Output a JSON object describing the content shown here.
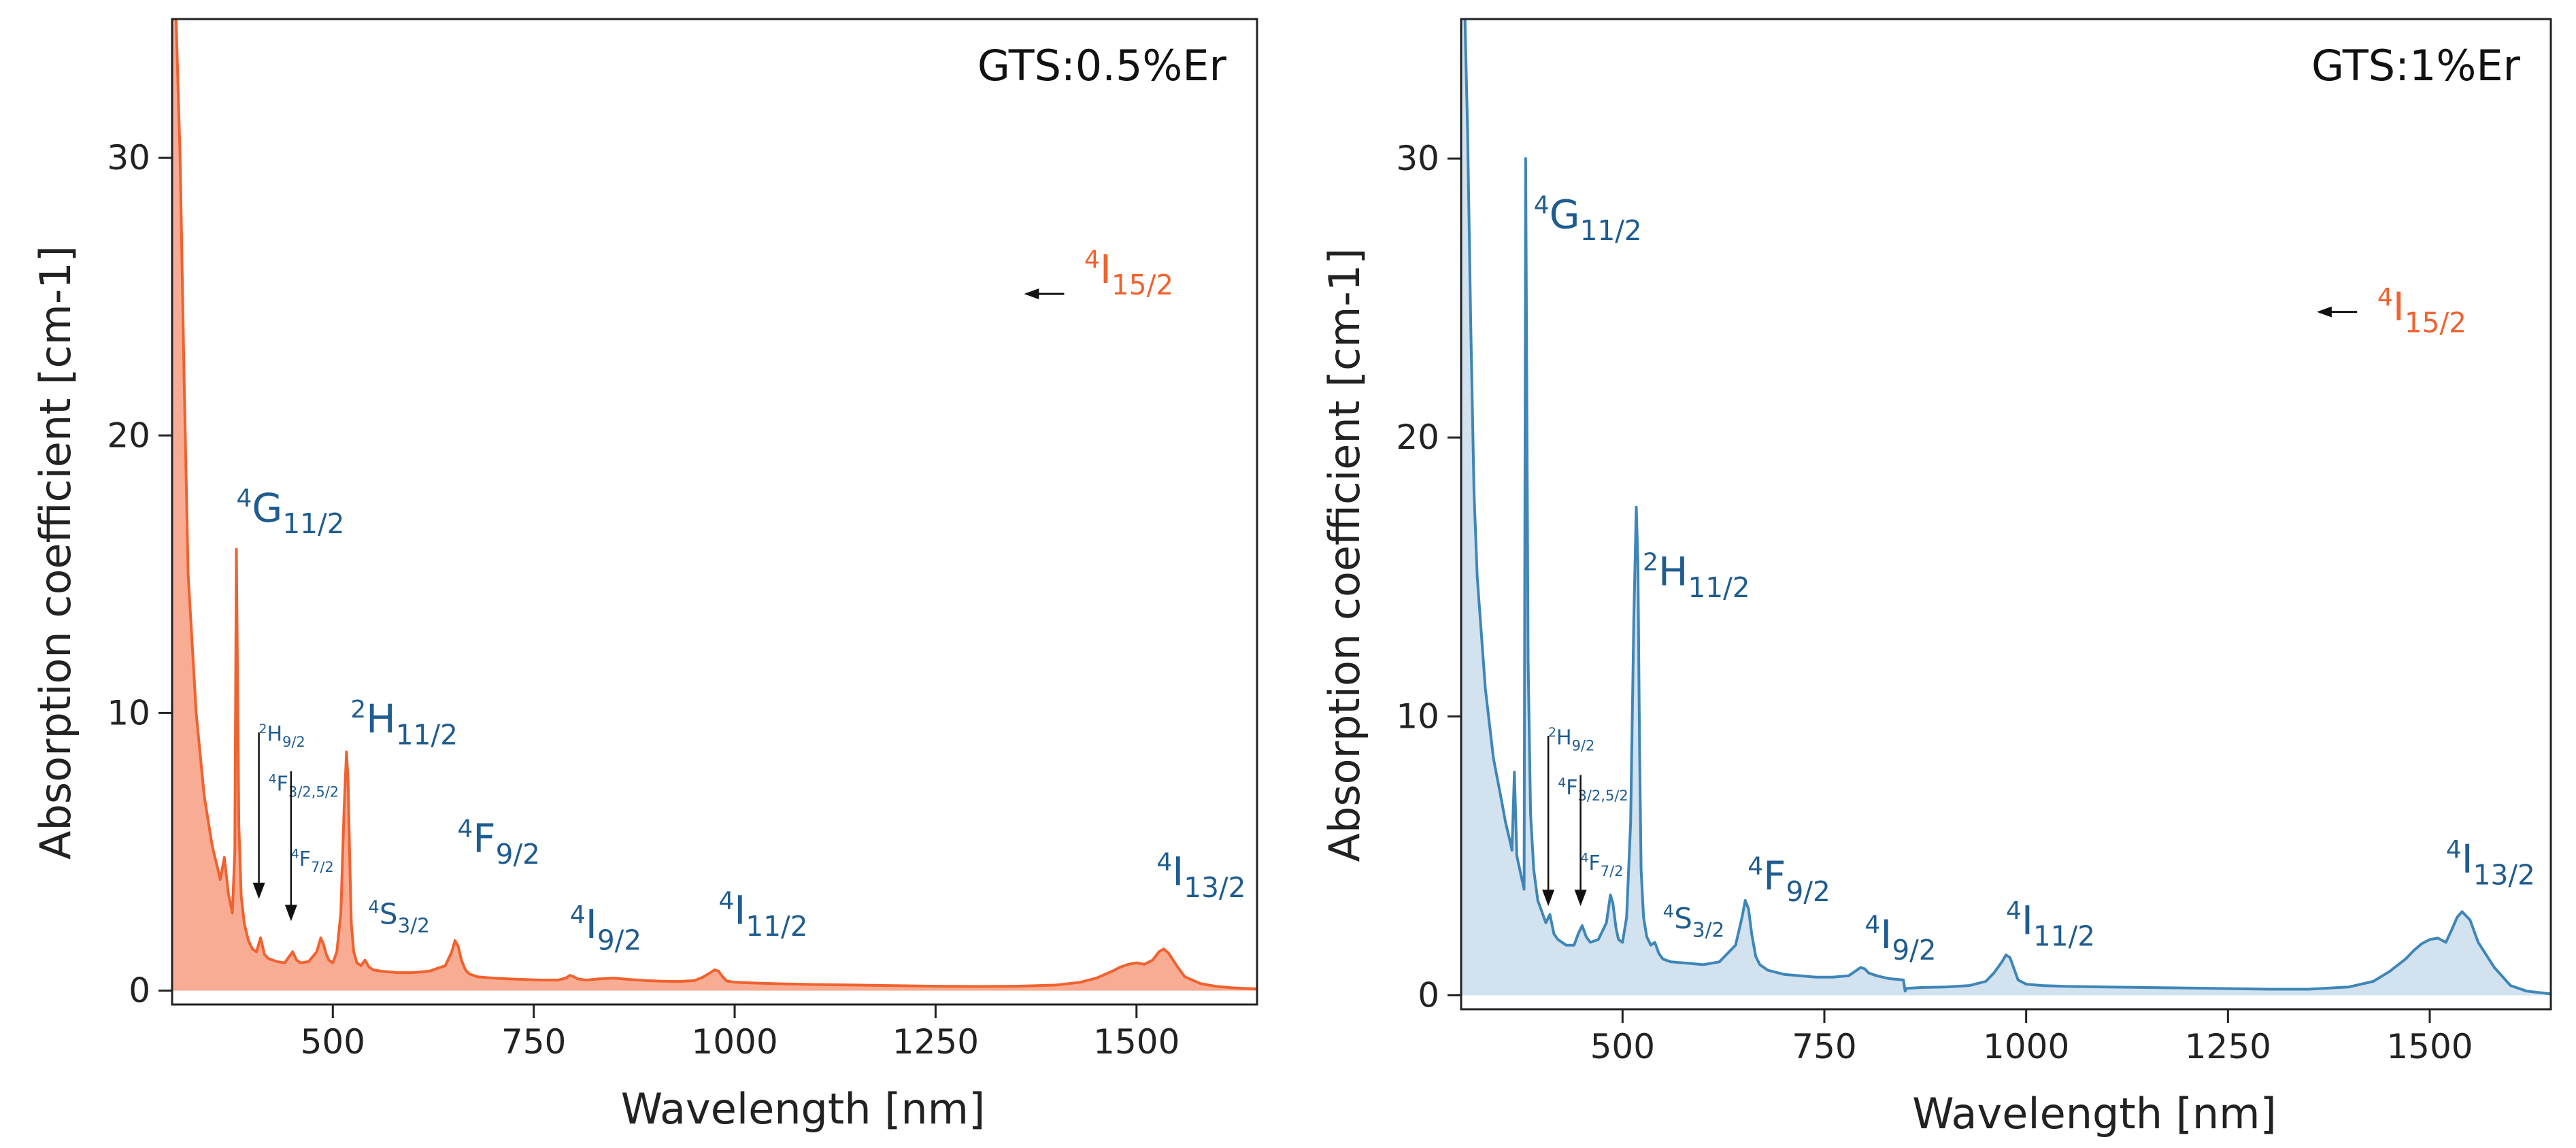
{
  "chart_data": [
    {
      "type": "area",
      "title": "GTS:0.5%Er",
      "xlabel": "Wavelength [nm]",
      "ylabel": "Absorption coefficient  [cm-1]",
      "xlim": [
        300,
        1650
      ],
      "ylim": [
        -0.5,
        35
      ],
      "xticks": [
        500,
        750,
        1000,
        1250,
        1500
      ],
      "yticks": [
        0,
        10,
        20,
        30
      ],
      "xtick_labels": [
        "500",
        "750",
        "1000",
        "1250",
        "1500"
      ],
      "ytick_labels": [
        "0",
        "10",
        "20",
        "30"
      ],
      "colors": {
        "line": "#F0622F",
        "fill": "#F8AC93",
        "label": "#1F5C8F"
      },
      "x": [
        300,
        305,
        310,
        315,
        320,
        330,
        340,
        350,
        360,
        365,
        370,
        375,
        378,
        380,
        383,
        386,
        390,
        395,
        400,
        405,
        410,
        415,
        420,
        430,
        440,
        445,
        450,
        455,
        460,
        470,
        480,
        485,
        488,
        492,
        495,
        500,
        505,
        510,
        514,
        517,
        519,
        521,
        523,
        526,
        530,
        535,
        540,
        545,
        550,
        560,
        580,
        600,
        620,
        640,
        648,
        652,
        656,
        660,
        665,
        670,
        680,
        700,
        720,
        740,
        760,
        780,
        790,
        795,
        800,
        805,
        815,
        830,
        850,
        870,
        890,
        910,
        930,
        950,
        960,
        970,
        975,
        980,
        985,
        990,
        1000,
        1020,
        1050,
        1100,
        1150,
        1200,
        1250,
        1300,
        1350,
        1400,
        1430,
        1450,
        1470,
        1480,
        1490,
        1500,
        1510,
        1520,
        1528,
        1534,
        1540,
        1550,
        1560,
        1580,
        1600,
        1620,
        1650
      ],
      "values": [
        38,
        35,
        30,
        22,
        15,
        10,
        7,
        5.2,
        4,
        4.8,
        3.5,
        2.8,
        5,
        15.9,
        6,
        3.4,
        2.4,
        1.8,
        1.5,
        1.4,
        1.9,
        1.3,
        1.15,
        1.05,
        1.0,
        1.2,
        1.4,
        1.1,
        1.0,
        1.05,
        1.4,
        1.9,
        1.7,
        1.3,
        1.1,
        1.0,
        1.4,
        2.8,
        6.5,
        8.6,
        7.6,
        4.8,
        2.4,
        1.4,
        1.0,
        0.9,
        1.1,
        0.85,
        0.75,
        0.7,
        0.65,
        0.65,
        0.7,
        0.9,
        1.4,
        1.8,
        1.6,
        1.1,
        0.75,
        0.6,
        0.5,
        0.45,
        0.42,
        0.4,
        0.38,
        0.38,
        0.45,
        0.55,
        0.5,
        0.42,
        0.38,
        0.42,
        0.45,
        0.4,
        0.36,
        0.34,
        0.33,
        0.36,
        0.48,
        0.65,
        0.75,
        0.7,
        0.5,
        0.35,
        0.3,
        0.28,
        0.25,
        0.22,
        0.2,
        0.18,
        0.16,
        0.15,
        0.16,
        0.2,
        0.3,
        0.45,
        0.7,
        0.85,
        0.95,
        1.0,
        0.95,
        1.1,
        1.4,
        1.5,
        1.35,
        0.9,
        0.5,
        0.25,
        0.15,
        0.1,
        0.06
      ],
      "labels": [
        {
          "pre": "4",
          "main": "G",
          "sub": "11/2",
          "x": 380,
          "y": 16.9,
          "size": "large"
        },
        {
          "pre": "2",
          "main": "H",
          "sub": "11/2",
          "x": 522,
          "y": 9.3,
          "size": "large"
        },
        {
          "pre": "2",
          "main": "H",
          "sub": "9/2",
          "x": 408,
          "y": 9.0,
          "size": "small"
        },
        {
          "pre": "4",
          "main": "F",
          "sub": "3/2,5/2",
          "x": 420,
          "y": 7.2,
          "size": "small"
        },
        {
          "pre": "4",
          "main": "F",
          "sub": "7/2",
          "x": 448,
          "y": 4.5,
          "size": "small"
        },
        {
          "pre": "4",
          "main": "S",
          "sub": "3/2",
          "x": 544,
          "y": 2.4,
          "size": "medium"
        },
        {
          "pre": "4",
          "main": "F",
          "sub": "9/2",
          "x": 655,
          "y": 5.0,
          "size": "large"
        },
        {
          "pre": "4",
          "main": "I",
          "sub": "9/2",
          "x": 795,
          "y": 1.9,
          "size": "large"
        },
        {
          "pre": "4",
          "main": "I",
          "sub": "11/2",
          "x": 980,
          "y": 2.4,
          "size": "large"
        },
        {
          "pre": "4",
          "main": "I",
          "sub": "13/2",
          "x": 1525,
          "y": 3.8,
          "size": "large"
        }
      ],
      "arrows": [
        {
          "x": 408,
          "y_from": 9.3,
          "y_to": 3.3
        },
        {
          "x": 448,
          "y_from": 7.9,
          "y_to": 2.5
        }
      ],
      "ground_state": {
        "pre": "4",
        "main": "I",
        "sub": "15/2",
        "x": 1435,
        "y": 25.5,
        "arrow_from": 1410,
        "arrow_to": 1360,
        "arrow_y": 25.1,
        "color": "#F0622F"
      }
    },
    {
      "type": "area",
      "title": "GTS:1%Er",
      "xlabel": "Wavelength [nm]",
      "ylabel": "Absorption coefficient  [cm-1]",
      "xlim": [
        300,
        1650
      ],
      "ylim": [
        -0.5,
        35
      ],
      "xticks": [
        500,
        750,
        1000,
        1250,
        1500
      ],
      "yticks": [
        0,
        10,
        20,
        30
      ],
      "xtick_labels": [
        "500",
        "750",
        "1000",
        "1250",
        "1500"
      ],
      "ytick_labels": [
        "0",
        "10",
        "20",
        "30"
      ],
      "colors": {
        "line": "#3F86B8",
        "fill": "#D2E2EE",
        "label": "#1F5C8F"
      },
      "x": [
        300,
        304,
        308,
        312,
        316,
        320,
        330,
        340,
        350,
        355,
        360,
        363,
        366,
        369,
        372,
        375,
        378,
        380,
        383,
        386,
        390,
        395,
        400,
        405,
        410,
        415,
        420,
        430,
        440,
        445,
        450,
        455,
        460,
        470,
        480,
        485,
        488,
        492,
        495,
        500,
        505,
        510,
        514,
        517,
        519,
        521,
        523,
        526,
        530,
        535,
        540,
        545,
        550,
        560,
        580,
        600,
        620,
        640,
        648,
        652,
        656,
        660,
        665,
        670,
        680,
        700,
        720,
        740,
        760,
        780,
        790,
        795,
        800,
        805,
        815,
        830,
        848,
        850,
        852,
        870,
        900,
        930,
        950,
        960,
        970,
        975,
        980,
        985,
        990,
        1000,
        1020,
        1050,
        1100,
        1150,
        1200,
        1250,
        1300,
        1350,
        1400,
        1430,
        1450,
        1470,
        1480,
        1490,
        1500,
        1510,
        1520,
        1528,
        1534,
        1540,
        1550,
        1560,
        1580,
        1600,
        1620,
        1650
      ],
      "values": [
        38,
        36,
        31,
        24,
        18,
        15,
        11,
        8.5,
        7,
        6.2,
        5.6,
        5.2,
        8,
        5,
        4.6,
        4.2,
        3.8,
        30,
        12,
        6.5,
        4.5,
        3.4,
        3.0,
        2.6,
        2.9,
        2.2,
        2.0,
        1.8,
        1.8,
        2.2,
        2.5,
        2.1,
        1.9,
        2.0,
        2.6,
        3.6,
        3.3,
        2.4,
        2.0,
        1.9,
        2.8,
        6.2,
        13.5,
        17.5,
        15.5,
        9.0,
        4.5,
        2.8,
        2.1,
        1.8,
        1.9,
        1.5,
        1.3,
        1.2,
        1.15,
        1.1,
        1.2,
        1.8,
        2.8,
        3.4,
        3.1,
        2.2,
        1.4,
        1.1,
        0.9,
        0.75,
        0.7,
        0.65,
        0.65,
        0.7,
        0.9,
        1.0,
        0.95,
        0.8,
        0.7,
        0.6,
        0.55,
        0.15,
        0.25,
        0.28,
        0.3,
        0.35,
        0.5,
        0.8,
        1.2,
        1.45,
        1.35,
        0.95,
        0.55,
        0.4,
        0.35,
        0.32,
        0.3,
        0.28,
        0.26,
        0.24,
        0.22,
        0.22,
        0.3,
        0.5,
        0.85,
        1.3,
        1.6,
        1.85,
        2.0,
        2.05,
        1.9,
        2.4,
        2.8,
        3.0,
        2.7,
        1.9,
        1.0,
        0.35,
        0.15,
        0.05
      ],
      "labels": [
        {
          "pre": "4",
          "main": "G",
          "sub": "11/2",
          "x": 390,
          "y": 27.5,
          "size": "large"
        },
        {
          "pre": "2",
          "main": "H",
          "sub": "11/2",
          "x": 525,
          "y": 14.7,
          "size": "large"
        },
        {
          "pre": "2",
          "main": "H",
          "sub": "9/2",
          "x": 408,
          "y": 9.0,
          "size": "small"
        },
        {
          "pre": "4",
          "main": "F",
          "sub": "3/2,5/2",
          "x": 420,
          "y": 7.2,
          "size": "small"
        },
        {
          "pre": "4",
          "main": "F",
          "sub": "7/2",
          "x": 448,
          "y": 4.5,
          "size": "small"
        },
        {
          "pre": "4",
          "main": "S",
          "sub": "3/2",
          "x": 550,
          "y": 2.4,
          "size": "medium"
        },
        {
          "pre": "4",
          "main": "F",
          "sub": "9/2",
          "x": 655,
          "y": 3.8,
          "size": "large"
        },
        {
          "pre": "4",
          "main": "I",
          "sub": "9/2",
          "x": 800,
          "y": 1.7,
          "size": "large"
        },
        {
          "pre": "4",
          "main": "I",
          "sub": "11/2",
          "x": 975,
          "y": 2.2,
          "size": "large"
        },
        {
          "pre": "4",
          "main": "I",
          "sub": "13/2",
          "x": 1520,
          "y": 4.4,
          "size": "large"
        }
      ],
      "arrows": [
        {
          "x": 408,
          "y_from": 9.3,
          "y_to": 3.2
        },
        {
          "x": 448,
          "y_from": 7.9,
          "y_to": 3.2
        }
      ],
      "ground_state": {
        "pre": "4",
        "main": "I",
        "sub": "15/2",
        "x": 1435,
        "y": 24.2,
        "arrow_from": 1410,
        "arrow_to": 1360,
        "arrow_y": 24.5,
        "color": "#F0622F"
      }
    }
  ]
}
